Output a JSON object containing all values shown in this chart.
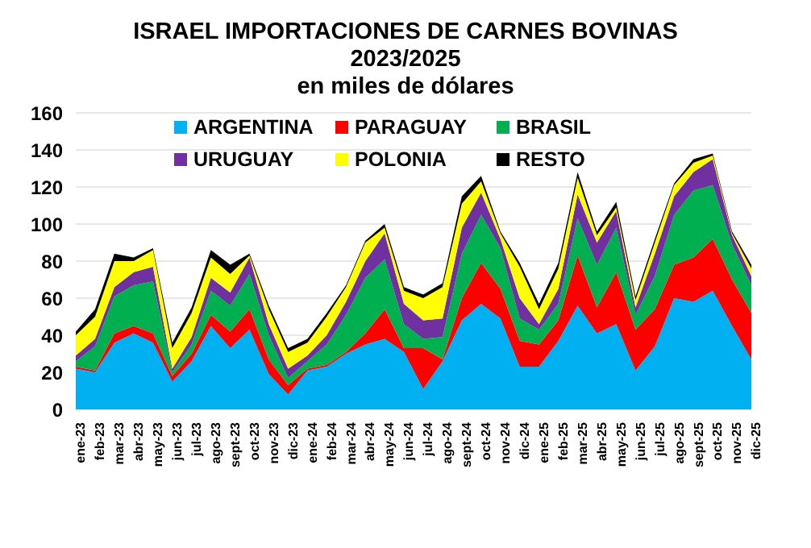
{
  "chart_data": {
    "type": "area",
    "title": "ISRAEL IMPORTACIONES DE CARNES BOVINAS",
    "subtitle": "2023/2025\nen miles de dólares",
    "stacked": true,
    "legend": "top",
    "grid": "y",
    "categories": [
      "ene-23",
      "feb-23",
      "mar-23",
      "abr-23",
      "may-23",
      "jun-23",
      "jul-23",
      "ago-23",
      "sept-23",
      "oct-23",
      "nov-23",
      "dic-23",
      "ene-24",
      "feb-24",
      "mar-24",
      "abr-24",
      "may-24",
      "jun-24",
      "jul-24",
      "ago-24",
      "sept-24",
      "oct-24",
      "nov-24",
      "dic-24",
      "ene-25",
      "feb-25",
      "mar-25",
      "abr-25",
      "may-25",
      "jun-25",
      "jul-25",
      "ago-25",
      "sept-25",
      "oct-25",
      "nov-25",
      "dic-25"
    ],
    "ylim": [
      0,
      160
    ],
    "yticks": [
      0,
      20,
      40,
      60,
      80,
      100,
      120,
      140,
      160
    ],
    "series": [
      {
        "name": "ARGENTINA",
        "color": "#00b0f0",
        "values": [
          22,
          20,
          36,
          41,
          36,
          15,
          26,
          45,
          33,
          43,
          19,
          8,
          21,
          23,
          30,
          35,
          38,
          31,
          11,
          26,
          48,
          57,
          49,
          23,
          23,
          37,
          56,
          41,
          46,
          21,
          34,
          60,
          58,
          64,
          45,
          27
        ]
      },
      {
        "name": "PARAGUAY",
        "color": "#ff0000",
        "values": [
          1,
          1,
          5,
          4,
          5,
          3,
          4,
          6,
          9,
          11,
          8,
          5,
          1,
          1,
          1,
          6,
          16,
          2,
          22,
          1,
          12,
          22,
          16,
          14,
          12,
          11,
          27,
          14,
          28,
          22,
          20,
          18,
          24,
          28,
          25,
          25
        ]
      },
      {
        "name": "BRASIL",
        "color": "#00b050",
        "values": [
          3,
          13,
          20,
          22,
          28,
          2,
          5,
          13,
          14,
          19,
          13,
          4,
          4,
          11,
          20,
          30,
          27,
          13,
          5,
          12,
          24,
          26,
          22,
          12,
          8,
          9,
          20,
          23,
          24,
          8,
          18,
          27,
          36,
          29,
          19,
          15
        ]
      },
      {
        "name": "URUGUAY",
        "color": "#7030a0",
        "values": [
          3,
          4,
          5,
          7,
          8,
          2,
          4,
          7,
          7,
          9,
          6,
          5,
          3,
          5,
          7,
          9,
          14,
          11,
          10,
          10,
          14,
          12,
          5,
          11,
          3,
          8,
          13,
          12,
          9,
          4,
          12,
          10,
          10,
          14,
          5,
          5
        ]
      },
      {
        "name": "POLONIA",
        "color": "#ffff00",
        "values": [
          11,
          12,
          14,
          6,
          9,
          11,
          13,
          11,
          10,
          1,
          8,
          9,
          7,
          10,
          8,
          10,
          3,
          7,
          12,
          17,
          13,
          6,
          3,
          17,
          8,
          11,
          9,
          4,
          2,
          4,
          6,
          6,
          5,
          2,
          1,
          4
        ]
      },
      {
        "name": "RESTO",
        "color": "#000000",
        "values": [
          2,
          4,
          4,
          2,
          1,
          3,
          3,
          4,
          5,
          1,
          2,
          2,
          2,
          2,
          1,
          1,
          2,
          2,
          2,
          2,
          4,
          3,
          1,
          2,
          3,
          3,
          3,
          2,
          3,
          2,
          2,
          1,
          2,
          1,
          1,
          2
        ]
      }
    ]
  }
}
